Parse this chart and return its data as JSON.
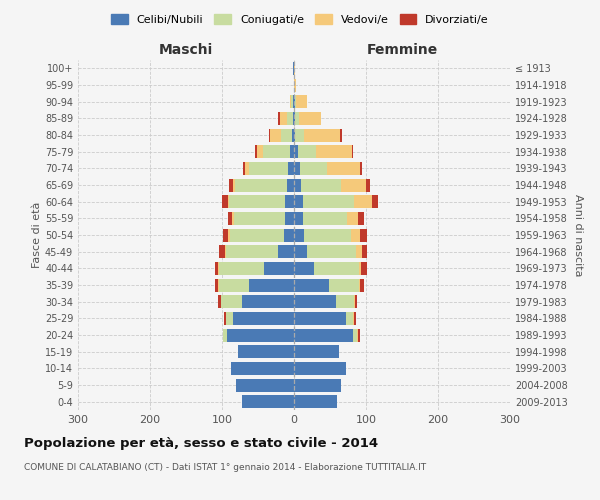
{
  "age_groups": [
    "0-4",
    "5-9",
    "10-14",
    "15-19",
    "20-24",
    "25-29",
    "30-34",
    "35-39",
    "40-44",
    "45-49",
    "50-54",
    "55-59",
    "60-64",
    "65-69",
    "70-74",
    "75-79",
    "80-84",
    "85-89",
    "90-94",
    "95-99",
    "100+"
  ],
  "birth_years": [
    "2009-2013",
    "2004-2008",
    "1999-2003",
    "1994-1998",
    "1989-1993",
    "1984-1988",
    "1979-1983",
    "1974-1978",
    "1969-1973",
    "1964-1968",
    "1959-1963",
    "1954-1958",
    "1949-1953",
    "1944-1948",
    "1939-1943",
    "1934-1938",
    "1929-1933",
    "1924-1928",
    "1919-1923",
    "1914-1918",
    "≤ 1913"
  ],
  "male": {
    "celibi": [
      72,
      80,
      88,
      78,
      93,
      85,
      72,
      62,
      42,
      22,
      14,
      12,
      12,
      10,
      8,
      5,
      3,
      2,
      1,
      0,
      1
    ],
    "coniugati": [
      0,
      0,
      0,
      0,
      5,
      10,
      30,
      42,
      62,
      72,
      75,
      72,
      78,
      72,
      55,
      38,
      15,
      8,
      3,
      0,
      0
    ],
    "vedovi": [
      0,
      0,
      0,
      0,
      0,
      0,
      0,
      1,
      1,
      2,
      2,
      2,
      2,
      3,
      5,
      8,
      15,
      10,
      2,
      0,
      0
    ],
    "divorziati": [
      0,
      0,
      0,
      0,
      0,
      2,
      3,
      5,
      5,
      8,
      8,
      5,
      8,
      5,
      3,
      3,
      2,
      2,
      0,
      0,
      0
    ]
  },
  "female": {
    "nubili": [
      60,
      65,
      72,
      62,
      82,
      72,
      58,
      48,
      28,
      18,
      14,
      12,
      12,
      10,
      8,
      5,
      2,
      2,
      1,
      0,
      0
    ],
    "coniugate": [
      0,
      0,
      0,
      0,
      5,
      10,
      25,
      42,
      62,
      68,
      65,
      62,
      72,
      55,
      38,
      25,
      12,
      5,
      2,
      0,
      0
    ],
    "vedove": [
      0,
      0,
      0,
      0,
      2,
      2,
      2,
      2,
      3,
      8,
      12,
      15,
      25,
      35,
      45,
      50,
      50,
      30,
      15,
      3,
      1
    ],
    "divorziate": [
      0,
      0,
      0,
      0,
      2,
      2,
      3,
      5,
      8,
      8,
      10,
      8,
      8,
      5,
      3,
      2,
      2,
      1,
      0,
      0,
      0
    ]
  },
  "colors": {
    "celibi": "#4a7ab5",
    "coniugati": "#c8dca0",
    "vedovi": "#f5c97a",
    "divorziati": "#c0392b"
  },
  "title": "Popolazione per età, sesso e stato civile - 2014",
  "subtitle": "COMUNE DI CALATABIANO (CT) - Dati ISTAT 1° gennaio 2014 - Elaborazione TUTTITALIA.IT",
  "xlabel_left": "Maschi",
  "xlabel_right": "Femmine",
  "ylabel_left": "Fasce di età",
  "ylabel_right": "Anni di nascita",
  "xlim": 300,
  "background_color": "#f5f5f5",
  "grid_color": "#cccccc"
}
